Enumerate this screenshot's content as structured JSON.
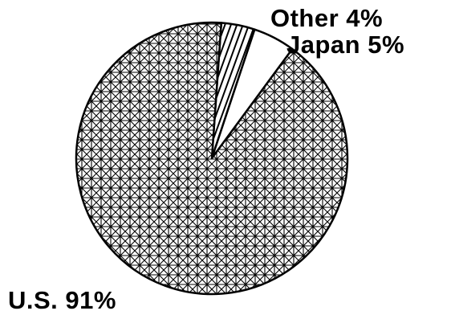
{
  "chart_data": {
    "type": "pie",
    "start_angle_deg": 4,
    "slices": [
      {
        "label": "Other 4%",
        "value": 4,
        "pattern": "hatch"
      },
      {
        "label": "Japan 5%",
        "value": 5,
        "pattern": "solid"
      },
      {
        "label": "U.S. 91%",
        "value": 91,
        "pattern": "crosshatch"
      }
    ]
  },
  "colors": {
    "ink": "#000000",
    "paper": "#ffffff"
  }
}
